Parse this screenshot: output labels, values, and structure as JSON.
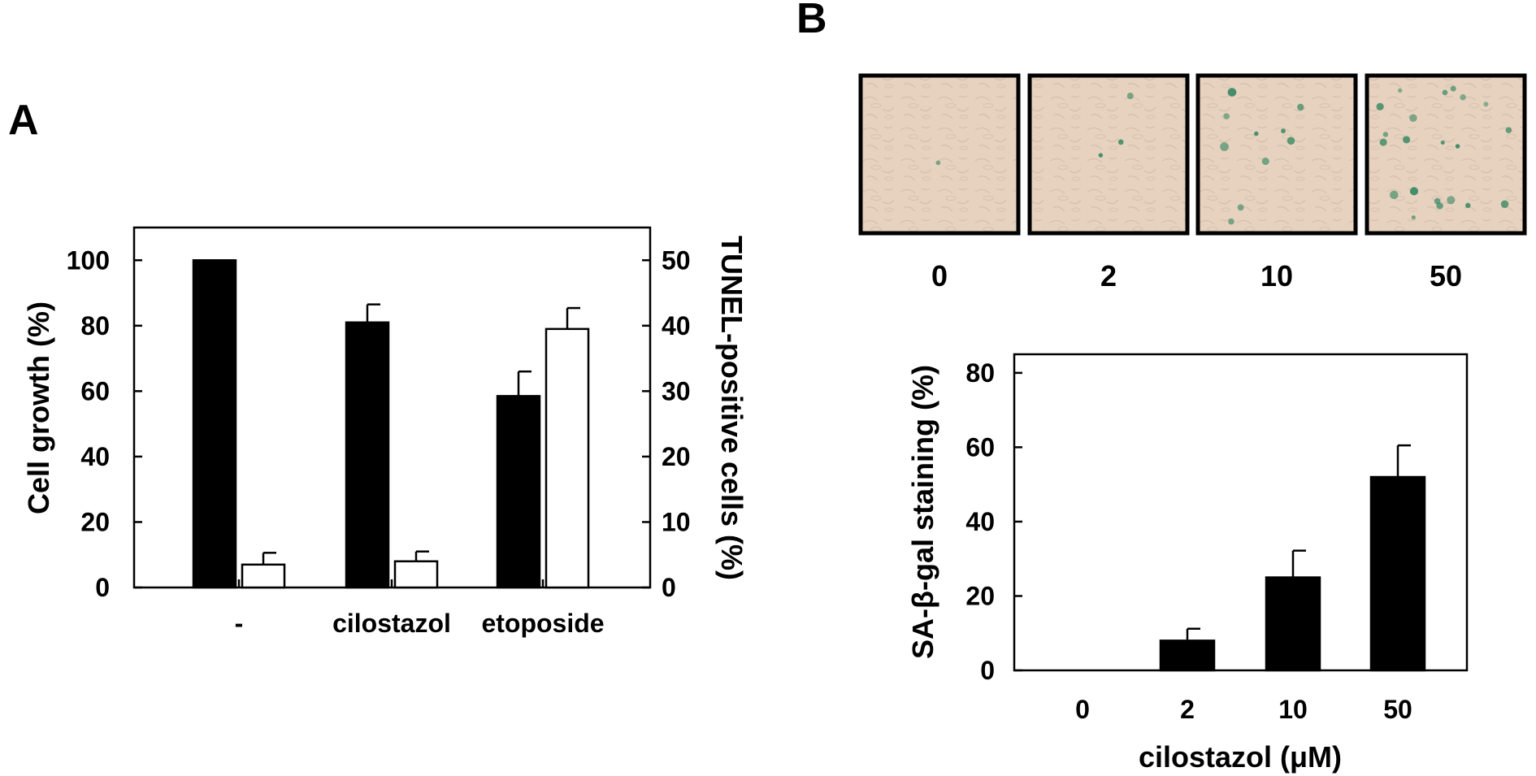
{
  "panels": {
    "a_letter": "A",
    "b_letter": "B"
  },
  "colors": {
    "bar_fill": "#000000",
    "open_bar_fill": "#ffffff",
    "micrograph_bg": "#e7d2bf",
    "stain": "#3a8a63"
  },
  "chart_data": [
    {
      "panel": "A",
      "type": "bar",
      "categories": [
        "-",
        "cilostazol",
        "etoposide"
      ],
      "series": [
        {
          "axis": "left",
          "fill": "solid",
          "values": [
            100,
            81,
            58.5
          ],
          "errors": [
            0,
            5.5,
            7.5
          ]
        },
        {
          "axis": "right",
          "fill": "open",
          "values": [
            3.5,
            4,
            39.5
          ],
          "errors": [
            1.8,
            1.5,
            3.2
          ]
        }
      ],
      "ylabel": "Cell growth (%)",
      "y2label": "TUNEL-positive cells (%)",
      "ylim": [
        0,
        110
      ],
      "y2lim": [
        0,
        55
      ],
      "yticks": [
        "0",
        "20",
        "40",
        "60",
        "80",
        "100"
      ],
      "y2ticks": [
        "0",
        "10",
        "20",
        "30",
        "40",
        "50"
      ],
      "grid": false,
      "legend": "none"
    },
    {
      "panel": "B",
      "type": "bar",
      "categories": [
        "0",
        "2",
        "10",
        "50"
      ],
      "series": [
        {
          "fill": "solid",
          "values": [
            0,
            8,
            25,
            52
          ],
          "errors": [
            0,
            3.2,
            7.2,
            8.5
          ]
        }
      ],
      "xlabel": "cilostazol (μM)",
      "ylabel": "SA-β-gal staining (%)",
      "ylim": [
        0,
        85
      ],
      "yticks": [
        "0",
        "20",
        "40",
        "60",
        "80"
      ],
      "grid": false,
      "legend": "none"
    }
  ],
  "micrographs": {
    "labels": [
      "0",
      "2",
      "10",
      "50"
    ],
    "stain_level": [
      0.02,
      0.08,
      0.25,
      0.52
    ]
  }
}
